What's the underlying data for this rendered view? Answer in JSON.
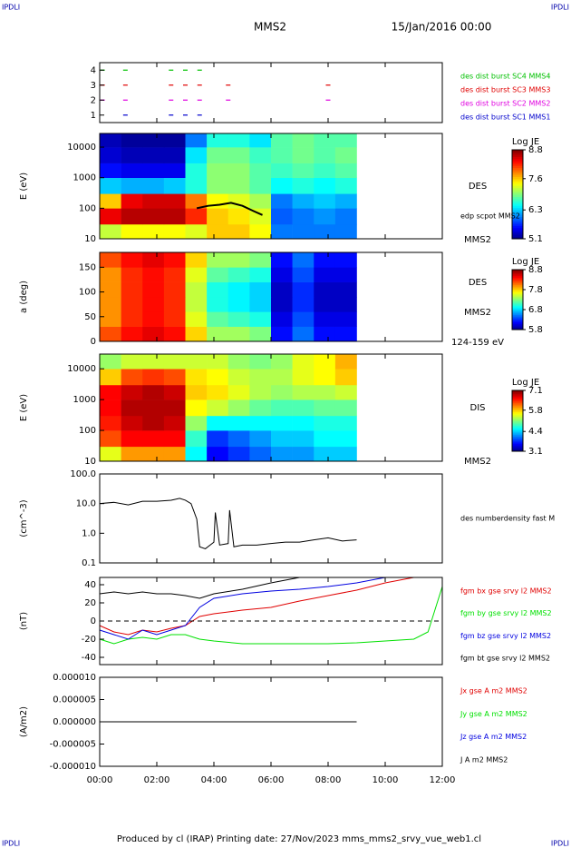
{
  "header": {
    "corner_left": "IPDLI",
    "corner_right": "IPDLI",
    "title": "MMS2",
    "date": "15/Jan/2016 00:00"
  },
  "footer": {
    "text": "Produced by cl (IRAP)   Printing date: 27/Nov/2023   mms_mms2_srvy_vue_web1.cl",
    "corner_left": "IPDLI",
    "corner_right": "IPDLI"
  },
  "chart_data": [
    {
      "type": "scatter",
      "xlim": [
        0,
        12
      ],
      "ylim": [
        0.5,
        4.5
      ],
      "yticks": [
        1,
        2,
        3,
        4
      ],
      "series": [
        {
          "name": "des dist burst SC1 MMS1",
          "color": "#0000cc",
          "x": [
            0.9,
            2.5,
            3.0,
            3.5
          ],
          "values": [
            1,
            1,
            1,
            1
          ]
        },
        {
          "name": "des dist burst SC2 MMS2",
          "color": "#e000e0",
          "x": [
            0.1,
            0.9,
            2.5,
            3.0,
            3.5,
            4.5,
            8.0
          ],
          "values": [
            2,
            2,
            2,
            2,
            2,
            2,
            2
          ]
        },
        {
          "name": "des dist burst SC3 MMS3",
          "color": "#e00000",
          "x": [
            0.1,
            0.9,
            2.5,
            3.0,
            3.5,
            4.5,
            8.0
          ],
          "values": [
            3,
            3,
            3,
            3,
            3,
            3,
            3
          ]
        },
        {
          "name": "des dist burst SC4 MMS4",
          "color": "#00c000",
          "x": [
            0.1,
            0.9,
            2.5,
            3.0,
            3.5
          ],
          "values": [
            4,
            4,
            4,
            4,
            4
          ]
        }
      ]
    },
    {
      "type": "heatmap",
      "ylabel": "E (eV)",
      "xlim": [
        0,
        12
      ],
      "log_y": true,
      "ylim": [
        10,
        28000
      ],
      "yticks": [
        10,
        100,
        1000,
        10000
      ],
      "x": [
        0,
        0.75,
        1.5,
        2.25,
        3,
        3.75,
        4.5,
        5.25,
        6,
        6.75,
        7.5,
        8.25,
        9
      ],
      "y": [
        10,
        30,
        100,
        300,
        1000,
        3000,
        10000,
        28000
      ],
      "values": [
        [
          7.2,
          7.4,
          7.4,
          7.4,
          7.3,
          7.6,
          7.6,
          7.4,
          6.0,
          6.0,
          6.0,
          6.0
        ],
        [
          8.4,
          8.6,
          8.6,
          8.6,
          8.2,
          7.6,
          7.5,
          7.3,
          5.9,
          6.0,
          6.1,
          6.0
        ],
        [
          7.6,
          8.4,
          8.5,
          8.5,
          7.9,
          7.4,
          7.3,
          7.1,
          6.0,
          6.2,
          6.3,
          6.2
        ],
        [
          6.3,
          6.2,
          6.2,
          6.3,
          6.6,
          7.0,
          7.0,
          6.8,
          6.5,
          6.6,
          6.5,
          6.6
        ],
        [
          5.6,
          5.5,
          5.5,
          5.5,
          6.6,
          7.0,
          7.0,
          6.8,
          6.7,
          6.8,
          6.7,
          6.8
        ],
        [
          5.4,
          5.3,
          5.3,
          5.3,
          6.4,
          6.9,
          6.9,
          6.7,
          6.8,
          6.9,
          6.8,
          6.9
        ],
        [
          5.3,
          5.2,
          5.2,
          5.2,
          6.0,
          6.6,
          6.6,
          6.4,
          6.8,
          6.9,
          6.8,
          6.8
        ]
      ],
      "clim": [
        5.1,
        8.8
      ],
      "colorbar_title": "Log JE",
      "colorbar_ticks": [
        5.1,
        6.3,
        7.6,
        8.8
      ],
      "annotations": [
        "DES",
        "MMS2"
      ],
      "overlay": {
        "name": "edp scpot MMS2",
        "color": "#000000",
        "x": [
          3.4,
          3.8,
          4.2,
          4.6,
          5.0,
          5.4,
          5.7
        ],
        "values": [
          100,
          120,
          130,
          150,
          120,
          80,
          60
        ]
      }
    },
    {
      "type": "heatmap",
      "ylabel": "a (deg)",
      "xlim": [
        0,
        12
      ],
      "log_y": false,
      "ylim": [
        0,
        180
      ],
      "yticks": [
        0,
        50,
        100,
        150
      ],
      "x": [
        0,
        0.75,
        1.5,
        2.25,
        3,
        3.75,
        4.5,
        5.25,
        6,
        6.75,
        7.5,
        8.25,
        9
      ],
      "y": [
        0,
        30,
        60,
        90,
        120,
        150,
        180
      ],
      "values": [
        [
          8.2,
          8.4,
          8.5,
          8.4,
          7.8,
          7.4,
          7.4,
          7.3,
          6.2,
          6.5,
          6.2,
          6.2
        ],
        [
          8.0,
          8.3,
          8.4,
          8.3,
          7.6,
          7.2,
          7.1,
          7.0,
          6.1,
          6.4,
          6.1,
          6.1
        ],
        [
          8.0,
          8.3,
          8.4,
          8.3,
          7.5,
          7.0,
          6.9,
          6.8,
          6.0,
          6.3,
          6.0,
          6.0
        ],
        [
          8.0,
          8.3,
          8.4,
          8.3,
          7.5,
          7.0,
          6.9,
          6.8,
          6.0,
          6.3,
          6.0,
          6.0
        ],
        [
          8.0,
          8.3,
          8.4,
          8.3,
          7.6,
          7.2,
          7.1,
          7.0,
          6.1,
          6.4,
          6.1,
          6.1
        ],
        [
          8.2,
          8.4,
          8.5,
          8.4,
          7.8,
          7.4,
          7.4,
          7.3,
          6.2,
          6.5,
          6.2,
          6.2
        ]
      ],
      "clim": [
        5.8,
        8.8
      ],
      "colorbar_title": "Log JE",
      "colorbar_ticks": [
        5.8,
        6.8,
        7.8,
        8.8
      ],
      "annotations": [
        "DES",
        "MMS2",
        "124-159 eV"
      ]
    },
    {
      "type": "heatmap",
      "ylabel": "E (eV)",
      "xlim": [
        0,
        12
      ],
      "log_y": true,
      "ylim": [
        10,
        30000
      ],
      "yticks": [
        10,
        100,
        1000,
        10000
      ],
      "x": [
        0,
        0.75,
        1.5,
        2.25,
        3,
        3.75,
        4.5,
        5.25,
        6,
        6.75,
        7.5,
        8.25,
        9
      ],
      "y": [
        10,
        30,
        100,
        300,
        1000,
        3000,
        10000,
        30000
      ],
      "values": [
        [
          5.5,
          6.0,
          6.0,
          6.0,
          4.6,
          3.6,
          3.8,
          4.0,
          4.2,
          4.2,
          4.4,
          4.4
        ],
        [
          6.3,
          6.6,
          6.6,
          6.6,
          4.8,
          3.8,
          4.0,
          4.2,
          4.4,
          4.4,
          4.6,
          4.6
        ],
        [
          6.5,
          6.8,
          6.9,
          6.8,
          5.2,
          4.6,
          4.6,
          4.6,
          4.6,
          4.6,
          4.7,
          4.7
        ],
        [
          6.6,
          6.9,
          6.9,
          6.9,
          5.6,
          5.4,
          5.2,
          5.0,
          4.9,
          4.9,
          5.0,
          5.0
        ],
        [
          6.6,
          6.8,
          6.9,
          6.8,
          5.8,
          5.7,
          5.5,
          5.3,
          5.2,
          5.3,
          5.3,
          5.4
        ],
        [
          5.8,
          6.3,
          6.4,
          6.3,
          5.7,
          5.6,
          5.4,
          5.3,
          5.3,
          5.5,
          5.6,
          5.8
        ],
        [
          5.2,
          5.4,
          5.4,
          5.4,
          5.4,
          5.4,
          5.2,
          5.1,
          5.2,
          5.5,
          5.6,
          5.9
        ]
      ],
      "clim": [
        3.1,
        7.1
      ],
      "colorbar_title": "Log JE",
      "colorbar_ticks": [
        3.1,
        4.4,
        5.8,
        7.1
      ],
      "annotations": [
        "DIS",
        "MMS2"
      ]
    },
    {
      "type": "line",
      "ylabel": "(cm^-3)",
      "xlim": [
        0,
        12
      ],
      "log_y": true,
      "ylim": [
        0.1,
        100
      ],
      "yticks": [
        {
          "value": 100,
          "label": "100.0"
        },
        {
          "value": 10,
          "label": "10.0"
        },
        {
          "value": 1,
          "label": "1.0"
        },
        0.1
      ],
      "series": [
        {
          "name": "des numberdensity fast M",
          "color": "#000000",
          "x": [
            0,
            0.5,
            1,
            1.5,
            2,
            2.5,
            2.8,
            3.0,
            3.2,
            3.4,
            3.5,
            3.7,
            4.0,
            4.05,
            4.2,
            4.5,
            4.55,
            4.7,
            5.0,
            5.5,
            6.0,
            6.5,
            7.0,
            7.5,
            8.0,
            8.5,
            9.0
          ],
          "values": [
            10,
            11,
            9,
            12,
            12,
            13,
            15,
            13,
            10,
            3,
            0.35,
            0.3,
            0.5,
            5,
            0.4,
            0.45,
            6,
            0.35,
            0.4,
            0.4,
            0.45,
            0.5,
            0.5,
            0.6,
            0.7,
            0.55,
            0.6
          ]
        }
      ]
    },
    {
      "type": "line",
      "ylabel": "(nT)",
      "xlim": [
        0,
        12
      ],
      "log_y": false,
      "ylim": [
        -48,
        48
      ],
      "yticks": [
        40,
        20,
        0,
        -20,
        -40
      ],
      "zero_line": true,
      "series": [
        {
          "name": "fgm bx gse srvy l2 MMS2",
          "color": "#e00000",
          "x": [
            0,
            0.5,
            1,
            1.5,
            2,
            2.5,
            3,
            3.5,
            4,
            5,
            6,
            7,
            8,
            9,
            10,
            11,
            11.5,
            12
          ],
          "values": [
            -5,
            -12,
            -15,
            -10,
            -12,
            -8,
            -5,
            5,
            8,
            12,
            15,
            22,
            28,
            34,
            42,
            48,
            null,
            null
          ]
        },
        {
          "name": "fgm by gse srvy l2 MMS2",
          "color": "#00e000",
          "x": [
            0,
            0.5,
            1,
            1.5,
            2,
            2.5,
            3,
            3.5,
            4,
            5,
            6,
            7,
            8,
            9,
            10,
            11,
            11.5,
            12
          ],
          "values": [
            -20,
            -25,
            -20,
            -18,
            -20,
            -15,
            -15,
            -20,
            -22,
            -25,
            -25,
            -25,
            -25,
            -24,
            -22,
            -20,
            -12,
            38
          ]
        },
        {
          "name": "fgm bz gse srvy l2 MMS2",
          "color": "#0000e0",
          "x": [
            0,
            0.5,
            1,
            1.5,
            2,
            2.5,
            3,
            3.5,
            4,
            5,
            6,
            7,
            8,
            9,
            10,
            11,
            11.5,
            12
          ],
          "values": [
            -10,
            -15,
            -20,
            -10,
            -15,
            -10,
            -5,
            15,
            25,
            30,
            33,
            35,
            38,
            42,
            48,
            null,
            null,
            null
          ]
        },
        {
          "name": "fgm bt gse srvy l2 MMS2",
          "color": "#000000",
          "x": [
            0,
            0.5,
            1,
            1.5,
            2,
            2.5,
            3,
            3.5,
            4,
            5,
            6,
            7,
            8,
            9,
            10,
            11,
            11.5,
            12
          ],
          "values": [
            30,
            32,
            30,
            32,
            30,
            30,
            28,
            25,
            30,
            35,
            42,
            48,
            48,
            48,
            null,
            null,
            null,
            null
          ]
        }
      ]
    },
    {
      "type": "line",
      "ylabel": "(A/m2)",
      "xlim": [
        0,
        12
      ],
      "log_y": false,
      "ylim": [
        -1e-05,
        1e-05
      ],
      "yticks": [
        {
          "value": 1e-05,
          "label": "0.000010"
        },
        {
          "value": 5e-06,
          "label": "0.000005"
        },
        {
          "value": 0,
          "label": "0.000000"
        },
        {
          "value": -5e-06,
          "label": "-0.000005"
        },
        {
          "value": -1e-05,
          "label": "-0.000010"
        }
      ],
      "xticks": [
        {
          "value": 0,
          "label": "00:00"
        },
        {
          "value": 2,
          "label": "02:00"
        },
        {
          "value": 4,
          "label": "04:00"
        },
        {
          "value": 6,
          "label": "06:00"
        },
        {
          "value": 8,
          "label": "08:00"
        },
        {
          "value": 10,
          "label": "10:00"
        },
        {
          "value": 12,
          "label": "12:00"
        }
      ],
      "series": [
        {
          "name": "Jx gse A m2 MMS2",
          "color": "#e00000",
          "x": [
            0,
            3,
            6,
            9
          ],
          "values": [
            0,
            0,
            0,
            0
          ]
        },
        {
          "name": "Jy gse A m2 MMS2",
          "color": "#00e000",
          "x": [
            0,
            3,
            6,
            9
          ],
          "values": [
            0,
            0,
            0,
            0
          ]
        },
        {
          "name": "Jz gse A m2 MMS2",
          "color": "#0000e0",
          "x": [
            0,
            3,
            6,
            9
          ],
          "values": [
            0,
            0,
            0,
            0
          ]
        },
        {
          "name": "J A m2 MMS2",
          "color": "#000000",
          "x": [
            0,
            3,
            6,
            9
          ],
          "values": [
            0,
            0,
            0,
            0
          ]
        }
      ]
    }
  ]
}
